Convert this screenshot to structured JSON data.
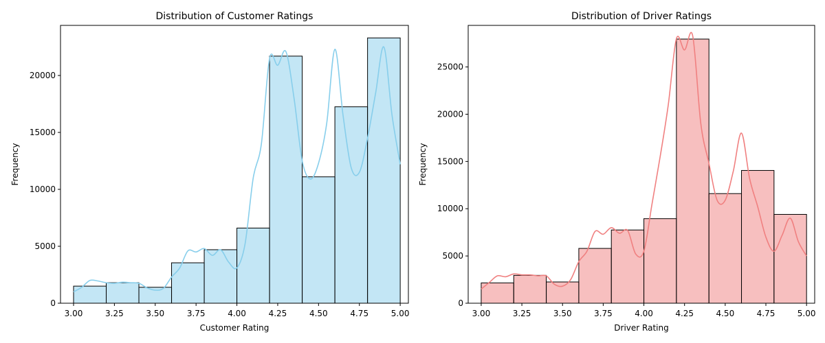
{
  "chart_data": [
    {
      "type": "bar",
      "subtype": "histogram-with-kde",
      "title": "Distribution of Customer Ratings",
      "xlabel": "Customer Rating",
      "ylabel": "Frequency",
      "xlim": [
        2.92,
        5.05
      ],
      "ylim": [
        0,
        24400
      ],
      "xticks": [
        3.0,
        3.25,
        3.5,
        3.75,
        4.0,
        4.25,
        4.5,
        4.75,
        5.0
      ],
      "xtick_labels": [
        "3.00",
        "3.25",
        "3.50",
        "3.75",
        "4.00",
        "4.25",
        "4.50",
        "4.75",
        "5.00"
      ],
      "yticks": [
        0,
        5000,
        10000,
        15000,
        20000
      ],
      "ytick_labels": [
        "0",
        "5000",
        "10000",
        "15000",
        "20000"
      ],
      "bin_edges": [
        3.0,
        3.2,
        3.4,
        3.6,
        3.8,
        4.0,
        4.2,
        4.4,
        4.6,
        4.8,
        5.0
      ],
      "values": [
        1500,
        1800,
        1400,
        3550,
        4700,
        6600,
        21700,
        11100,
        17250,
        23300
      ],
      "bar_color": "#87CEEB",
      "kde": {
        "x": [
          3.0,
          3.05,
          3.1,
          3.15,
          3.2,
          3.25,
          3.3,
          3.35,
          3.4,
          3.45,
          3.5,
          3.55,
          3.6,
          3.65,
          3.7,
          3.75,
          3.8,
          3.85,
          3.9,
          3.95,
          4.0,
          4.05,
          4.1,
          4.15,
          4.2,
          4.25,
          4.3,
          4.35,
          4.4,
          4.45,
          4.5,
          4.55,
          4.6,
          4.65,
          4.7,
          4.75,
          4.8,
          4.85,
          4.9,
          4.95,
          5.0
        ],
        "y": [
          1000,
          1400,
          2000,
          1950,
          1800,
          1750,
          1850,
          1800,
          1750,
          1350,
          1150,
          1300,
          2300,
          3100,
          4600,
          4500,
          4800,
          4200,
          4700,
          3600,
          3100,
          5200,
          11000,
          14000,
          21500,
          20900,
          22100,
          18000,
          12500,
          10900,
          12300,
          15800,
          22300,
          16500,
          11900,
          11500,
          14500,
          18500,
          22500,
          16500,
          12200
        ]
      }
    },
    {
      "type": "bar",
      "subtype": "histogram-with-kde",
      "title": "Distribution of Driver Ratings",
      "xlabel": "Driver Rating",
      "ylabel": "Frequency",
      "xlim": [
        2.92,
        5.05
      ],
      "ylim": [
        0,
        29400
      ],
      "xticks": [
        3.0,
        3.25,
        3.5,
        3.75,
        4.0,
        4.25,
        4.5,
        4.75,
        5.0
      ],
      "xtick_labels": [
        "3.00",
        "3.25",
        "3.50",
        "3.75",
        "4.00",
        "4.25",
        "4.50",
        "4.75",
        "5.00"
      ],
      "yticks": [
        0,
        5000,
        10000,
        15000,
        20000,
        25000
      ],
      "ytick_labels": [
        "0",
        "5000",
        "10000",
        "15000",
        "20000",
        "25000"
      ],
      "bin_edges": [
        3.0,
        3.2,
        3.4,
        3.6,
        3.8,
        4.0,
        4.2,
        4.4,
        4.6,
        4.8,
        5.0
      ],
      "values": [
        2150,
        2950,
        2250,
        5800,
        7750,
        8950,
        27950,
        11600,
        14050,
        9400
      ],
      "bar_color": "#F08080",
      "kde": {
        "x": [
          3.0,
          3.05,
          3.1,
          3.15,
          3.2,
          3.25,
          3.3,
          3.35,
          3.4,
          3.45,
          3.5,
          3.55,
          3.6,
          3.65,
          3.7,
          3.75,
          3.8,
          3.85,
          3.9,
          3.95,
          4.0,
          4.05,
          4.1,
          4.15,
          4.2,
          4.25,
          4.3,
          4.35,
          4.4,
          4.45,
          4.5,
          4.55,
          4.6,
          4.65,
          4.7,
          4.75,
          4.8,
          4.85,
          4.9,
          4.95,
          5.0
        ],
        "y": [
          1500,
          2200,
          2900,
          2800,
          3100,
          3000,
          3000,
          2900,
          2900,
          2000,
          1800,
          2500,
          4400,
          5500,
          7600,
          7300,
          8000,
          7400,
          7700,
          5200,
          5500,
          10500,
          15500,
          21000,
          28000,
          26800,
          28300,
          19000,
          14800,
          10900,
          10900,
          14000,
          18000,
          13200,
          10200,
          7000,
          5500,
          7200,
          9000,
          6500,
          5000
        ]
      }
    }
  ]
}
